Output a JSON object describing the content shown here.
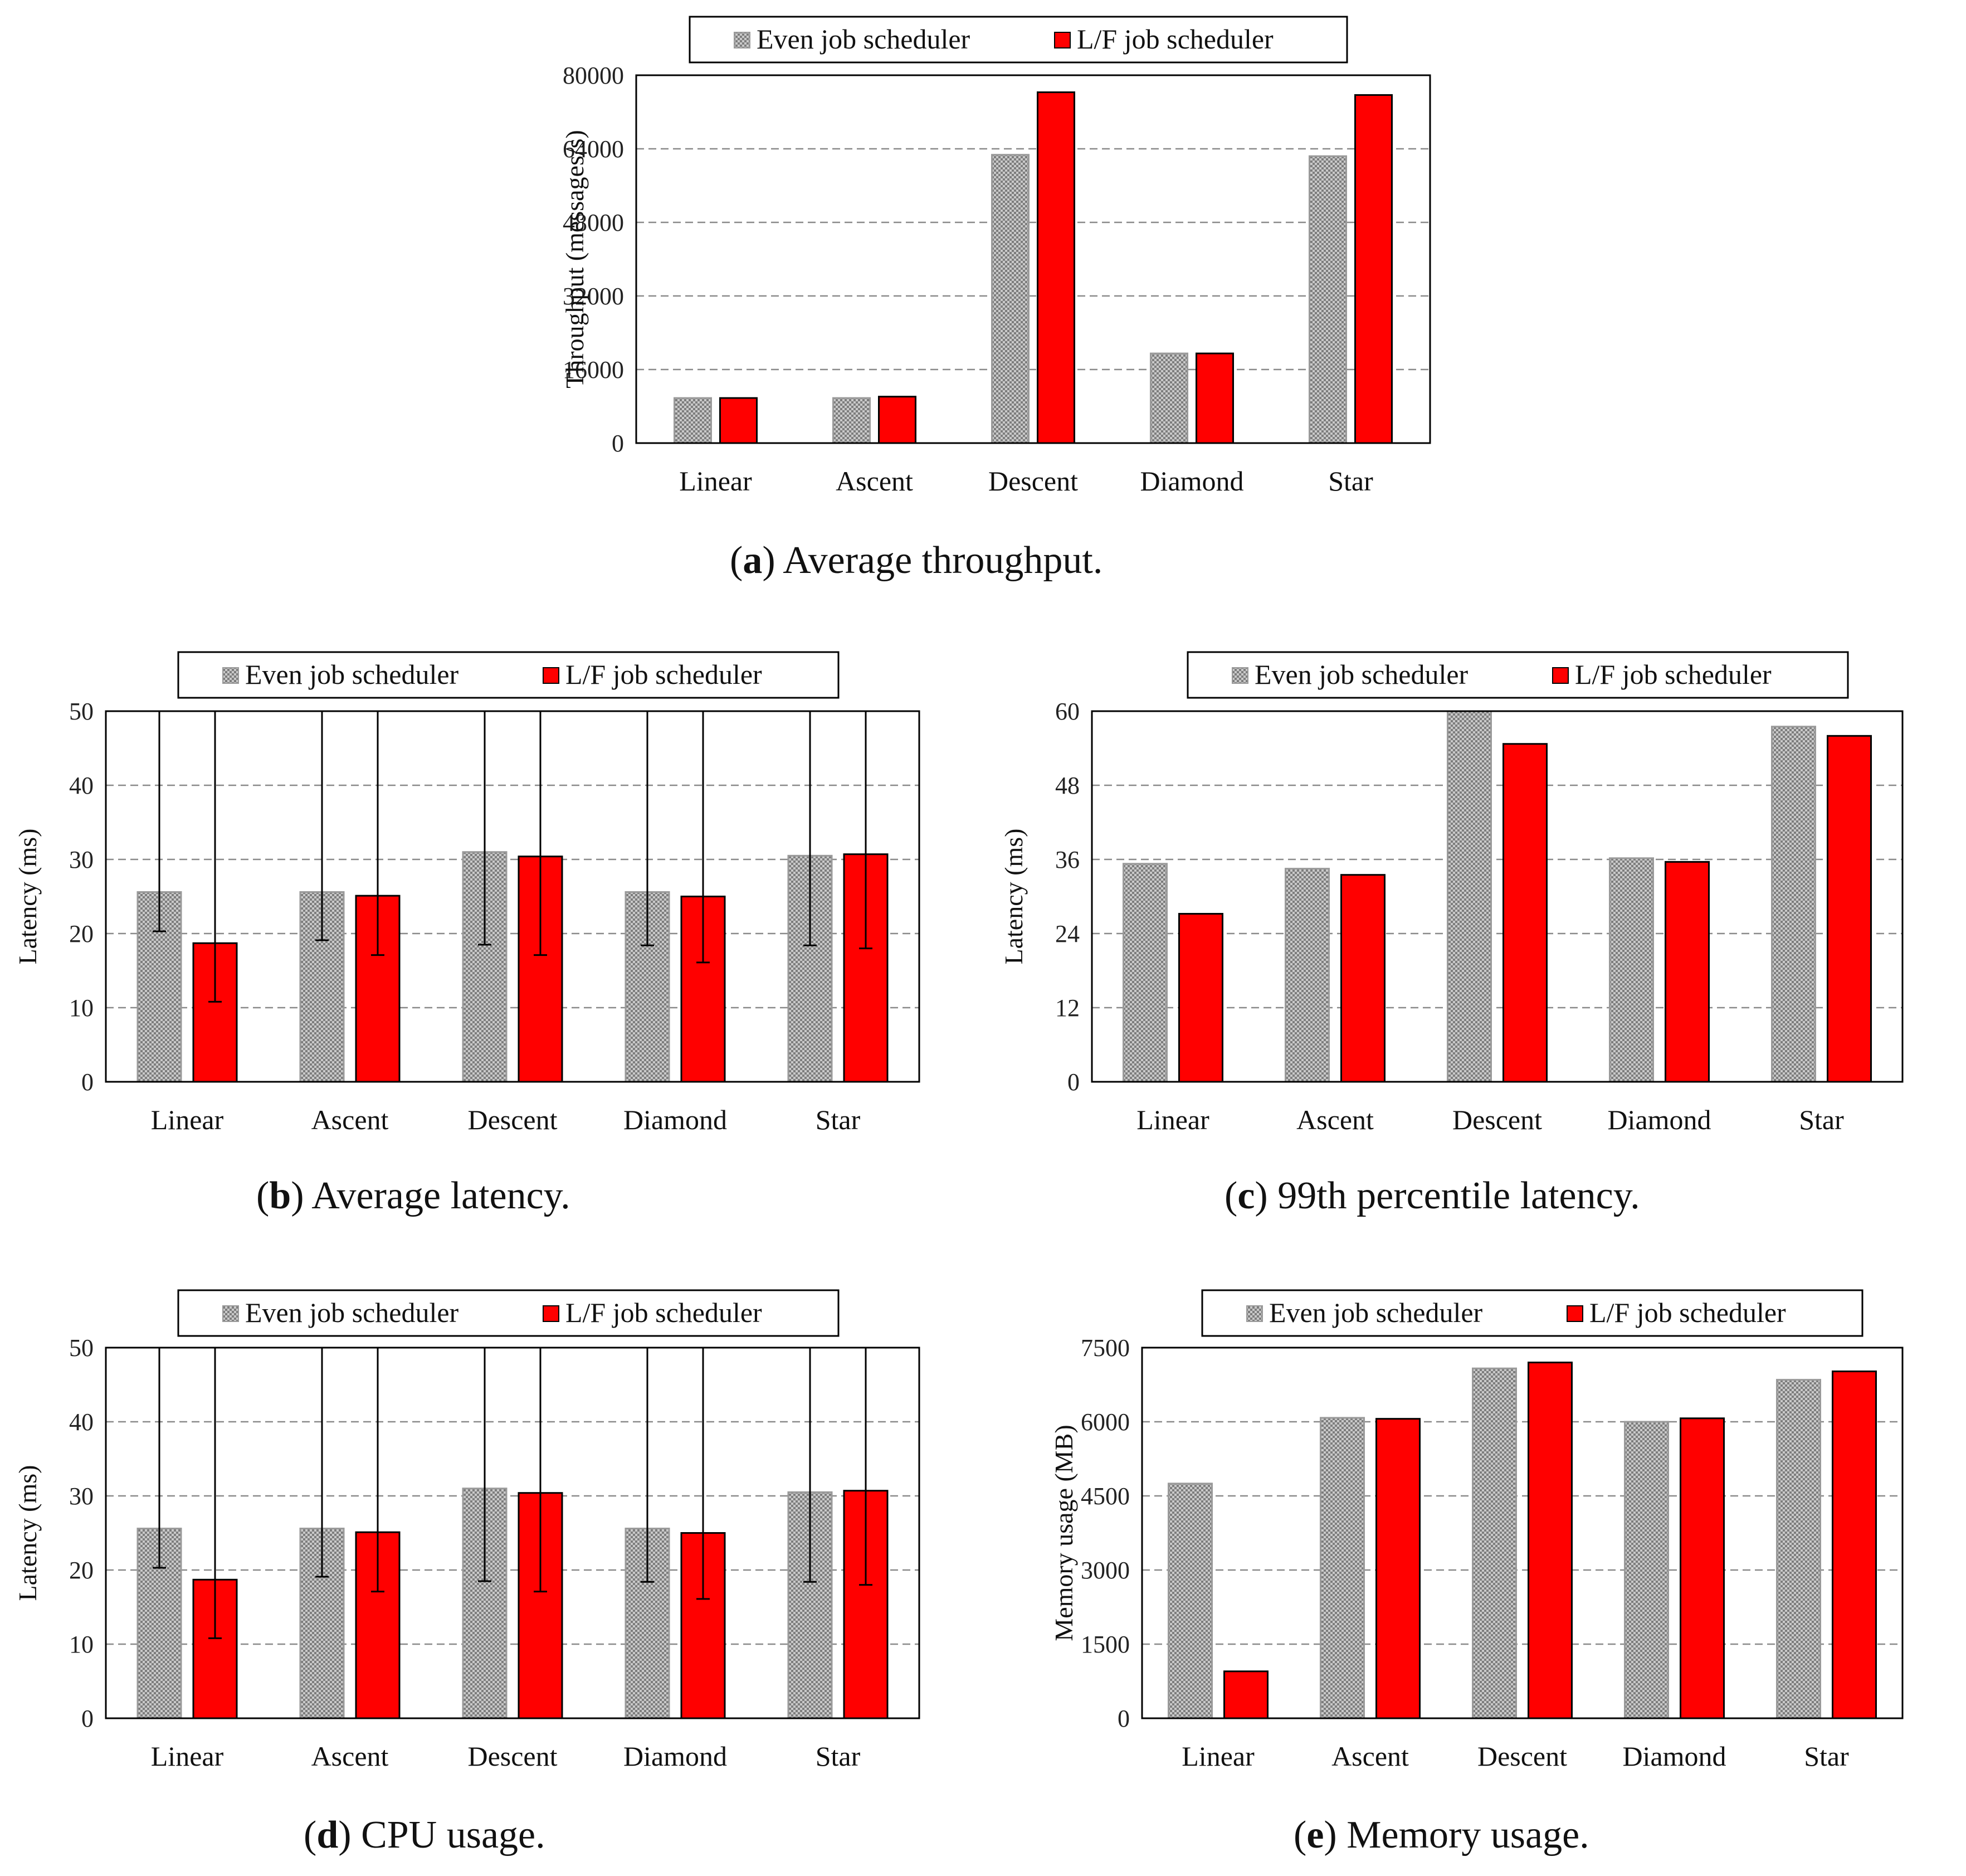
{
  "legend": {
    "even": "Even job scheduler",
    "lf": "L/F job scheduler"
  },
  "colors": {
    "even": "#b8b8b8",
    "lf": "#ff0000",
    "grid": "#8a8a8a"
  },
  "chart_data": [
    {
      "id": "a",
      "type": "bar",
      "caption_letter": "a",
      "caption_text": " Average throughput.",
      "categories": [
        "Linear",
        "Ascent",
        "Descent",
        "Diamond",
        "Star"
      ],
      "ylabel": "Throughput (messages/s)",
      "ylim": [
        0,
        80000
      ],
      "yticks": [
        0,
        16000,
        32000,
        48000,
        64000,
        80000
      ],
      "series": [
        {
          "name": "Even job scheduler",
          "values": [
            9800,
            9800,
            62700,
            19500,
            62400
          ]
        },
        {
          "name": "L/F job scheduler",
          "values": [
            9800,
            10100,
            76300,
            19500,
            75700
          ]
        }
      ]
    },
    {
      "id": "b",
      "type": "bar",
      "caption_letter": "b",
      "caption_text": " Average latency.",
      "categories": [
        "Linear",
        "Ascent",
        "Descent",
        "Diamond",
        "Star"
      ],
      "ylabel": "Latency (ms)",
      "ylim": [
        0,
        50
      ],
      "yticks": [
        0,
        10,
        20,
        30,
        40,
        50
      ],
      "series": [
        {
          "name": "Even job scheduler",
          "values": [
            25.6,
            25.6,
            31.0,
            25.6,
            30.5
          ],
          "err_low": [
            20.3,
            19.1,
            18.5,
            18.4,
            18.4
          ],
          "err_high": [
            50,
            50,
            50,
            50,
            50
          ]
        },
        {
          "name": "L/F job scheduler",
          "values": [
            18.7,
            25.1,
            30.4,
            25.0,
            30.7
          ],
          "err_low": [
            10.8,
            17.1,
            17.1,
            16.1,
            18.0
          ],
          "err_high": [
            50,
            50,
            50,
            50,
            50
          ]
        }
      ]
    },
    {
      "id": "c",
      "type": "bar",
      "caption_letter": "c",
      "caption_text": " 99th percentile latency.",
      "categories": [
        "Linear",
        "Ascent",
        "Descent",
        "Diamond",
        "Star"
      ],
      "ylabel": "Latency (ms)",
      "ylim": [
        0,
        60
      ],
      "yticks": [
        0,
        12,
        24,
        36,
        48,
        60
      ],
      "series": [
        {
          "name": "Even job scheduler",
          "values": [
            35.3,
            34.5,
            60.0,
            36.2,
            57.5
          ]
        },
        {
          "name": "L/F job scheduler",
          "values": [
            27.2,
            33.5,
            54.7,
            35.6,
            56.0
          ]
        }
      ]
    },
    {
      "id": "d",
      "type": "bar",
      "caption_letter": "d",
      "caption_text": " CPU usage.",
      "categories": [
        "Linear",
        "Ascent",
        "Descent",
        "Diamond",
        "Star"
      ],
      "ylabel": "Latency (ms)",
      "ylim": [
        0,
        50
      ],
      "yticks": [
        0,
        10,
        20,
        30,
        40,
        50
      ],
      "series": [
        {
          "name": "Even job scheduler",
          "values": [
            25.6,
            25.6,
            31.0,
            25.6,
            30.5
          ],
          "err_low": [
            20.3,
            19.1,
            18.5,
            18.4,
            18.4
          ],
          "err_high": [
            50,
            50,
            50,
            50,
            50
          ]
        },
        {
          "name": "L/F job scheduler",
          "values": [
            18.7,
            25.1,
            30.4,
            25.0,
            30.7
          ],
          "err_low": [
            10.8,
            17.1,
            17.1,
            16.1,
            18.0
          ],
          "err_high": [
            50,
            50,
            50,
            50,
            50
          ]
        }
      ]
    },
    {
      "id": "e",
      "type": "bar",
      "caption_letter": "e",
      "caption_text": " Memory usage.",
      "categories": [
        "Linear",
        "Ascent",
        "Descent",
        "Diamond",
        "Star"
      ],
      "ylabel": "Memory usage (MB)",
      "ylim": [
        0,
        7500
      ],
      "yticks": [
        0,
        1500,
        3000,
        4500,
        6000,
        7500
      ],
      "series": [
        {
          "name": "Even job scheduler",
          "values": [
            4750,
            6080,
            7080,
            6000,
            6850
          ]
        },
        {
          "name": "L/F job scheduler",
          "values": [
            950,
            6060,
            7200,
            6070,
            7020
          ]
        }
      ]
    }
  ]
}
